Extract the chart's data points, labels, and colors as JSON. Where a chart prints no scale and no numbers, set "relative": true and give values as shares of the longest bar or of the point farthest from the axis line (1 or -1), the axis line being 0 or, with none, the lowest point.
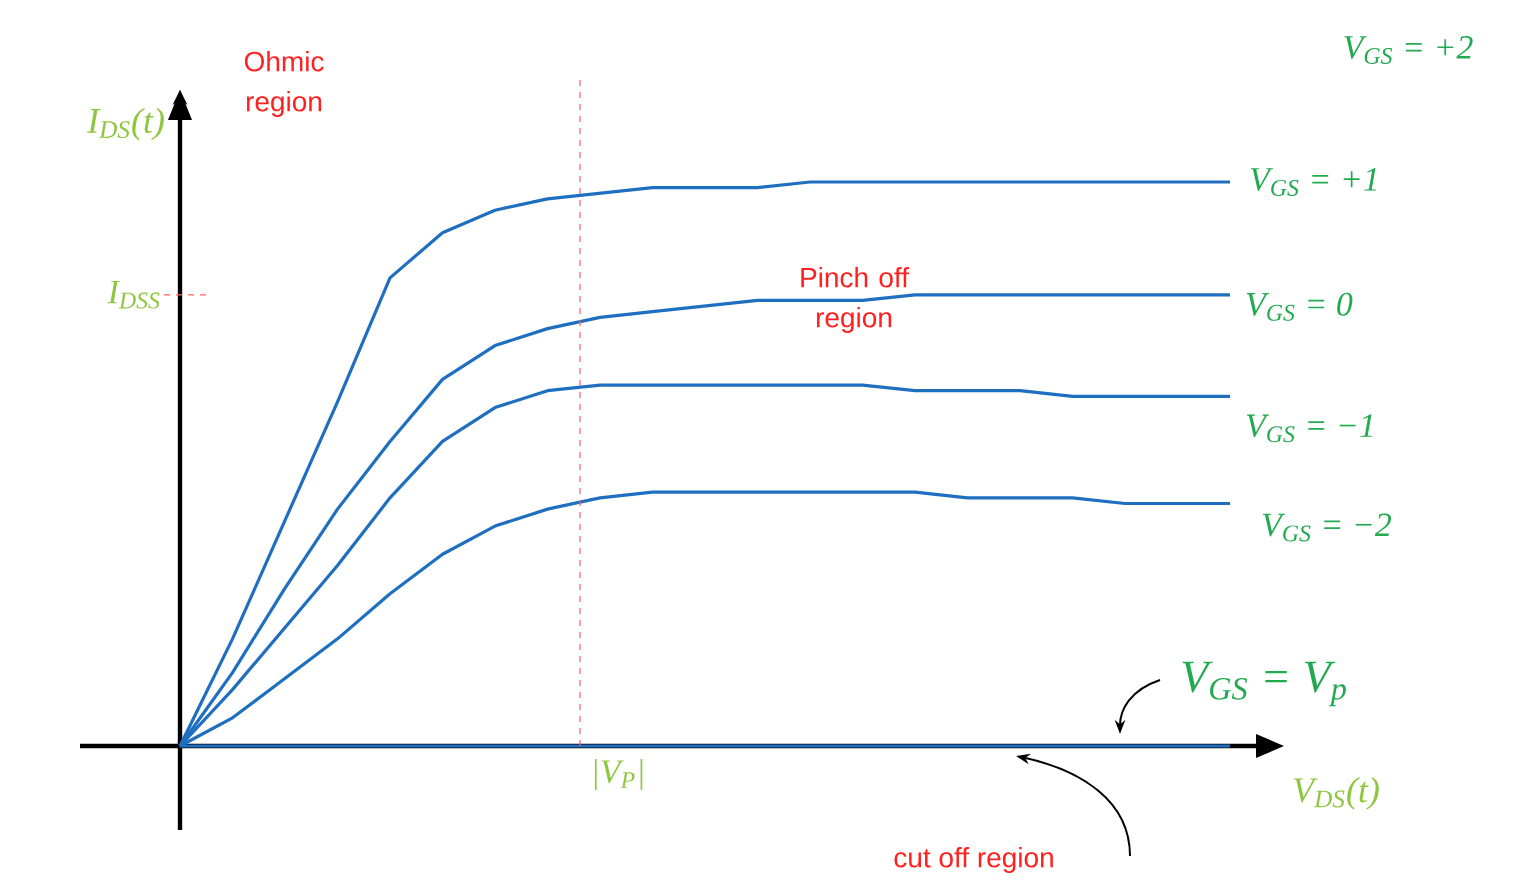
{
  "chart_data": {
    "type": "line",
    "relative": true,
    "xlabel": "V$_{DS}$(t)",
    "ylabel": "I$_{DS}$(t)",
    "categories": [
      null,
      null,
      null,
      null,
      null,
      null,
      null,
      null,
      null,
      null,
      null,
      null,
      null,
      null,
      null,
      null,
      null,
      null,
      null,
      null,
      null
    ],
    "series": [
      {
        "name": "V$_{GS}$ = +1",
        "color": "#1f6fc0",
        "values": [
          0,
          0.19,
          0.4,
          0.61,
          0.83,
          0.91,
          0.95,
          0.97,
          0.98,
          0.99,
          0.99,
          0.99,
          1.0,
          1.0,
          1.0,
          1.0,
          1.0,
          1.0,
          1.0,
          1.0,
          1.0
        ]
      },
      {
        "name": "V$_{GS}$ = 0",
        "color": "#1f6fc0",
        "values": [
          0,
          0.13,
          0.28,
          0.42,
          0.54,
          0.65,
          0.71,
          0.74,
          0.76,
          0.77,
          0.78,
          0.79,
          0.79,
          0.79,
          0.8,
          0.8,
          0.8,
          0.8,
          0.8,
          0.8,
          0.8
        ]
      },
      {
        "name": "V$_{GS}$ = −1",
        "color": "#1f6fc0",
        "values": [
          0,
          0.1,
          0.21,
          0.32,
          0.44,
          0.54,
          0.6,
          0.63,
          0.64,
          0.64,
          0.64,
          0.64,
          0.64,
          0.64,
          0.63,
          0.63,
          0.63,
          0.62,
          0.62,
          0.62,
          0.62
        ]
      },
      {
        "name": "V$_{GS}$ = −2",
        "color": "#1f6fc0",
        "values": [
          0,
          0.05,
          0.12,
          0.19,
          0.27,
          0.34,
          0.39,
          0.42,
          0.44,
          0.45,
          0.45,
          0.45,
          0.45,
          0.45,
          0.45,
          0.44,
          0.44,
          0.44,
          0.43,
          0.43,
          0.43
        ]
      },
      {
        "name": "V$_{GS}$ = V$_{p}$",
        "color": "#1f6fc0",
        "values": [
          0,
          0,
          0,
          0,
          0,
          0,
          0,
          0,
          0,
          0,
          0,
          0,
          0,
          0,
          0,
          0,
          0,
          0,
          0,
          0,
          0
        ]
      }
    ],
    "ref_lines": [
      {
        "axis": "y",
        "value": 0.8,
        "label": "I$_{DSS}$",
        "color": "#ff6060",
        "line_style": "dashed"
      }
    ],
    "annotations": [
      "Ohmic region",
      "Pinch off region",
      "cut off region",
      "V$_{GS}$ = +2",
      "|V$_{P}$|"
    ],
    "line_style": "solid",
    "marker": "none",
    "legend": false
  }
}
